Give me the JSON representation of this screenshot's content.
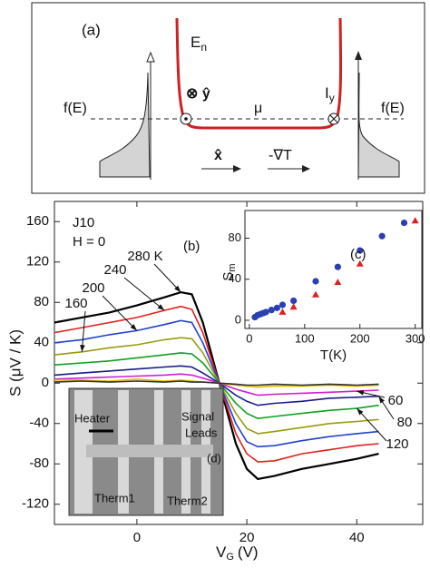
{
  "diagram": {
    "label": "(a)",
    "energy": "E",
    "energy_sub": "n",
    "fermi_left": "f(E)",
    "fermi_right": "f(E)",
    "otimes_y": "⊗ ŷ",
    "mu": "μ",
    "current": "I",
    "current_sub": "y",
    "x_hat": "x̂",
    "gradient": "-∇T"
  },
  "chart_data": [
    {
      "type": "line",
      "panel_label": "(b)",
      "annotations": [
        "J10",
        "H = 0"
      ],
      "ylabel": "S (μV / K)",
      "xlabel": "V",
      "xlabel_sub": "G",
      "xlabel_unit": "(V)",
      "xlim": [
        -15,
        52
      ],
      "ylim": [
        -140,
        180
      ],
      "xticks": [
        0,
        20,
        40
      ],
      "yticks": [
        -120,
        -80,
        -40,
        0,
        40,
        80,
        120,
        160
      ],
      "x": [
        -15,
        -10,
        -5,
        0,
        5,
        8,
        10,
        12,
        15,
        18,
        20,
        22,
        25,
        30,
        35,
        40,
        44
      ],
      "series": [
        {
          "name": "280 K",
          "color": "#000000",
          "values": [
            60,
            65,
            70,
            77,
            85,
            90,
            88,
            60,
            0,
            -60,
            -85,
            -95,
            -92,
            -85,
            -80,
            -75,
            -70
          ]
        },
        {
          "name": "240",
          "color": "#e0201a",
          "values": [
            50,
            55,
            60,
            65,
            72,
            76,
            73,
            50,
            0,
            -50,
            -70,
            -78,
            -77,
            -70,
            -66,
            -62,
            -60
          ]
        },
        {
          "name": "200",
          "color": "#2040d0",
          "values": [
            40,
            43,
            48,
            52,
            58,
            62,
            60,
            40,
            0,
            -40,
            -58,
            -63,
            -62,
            -57,
            -53,
            -50,
            -48
          ]
        },
        {
          "name": "160",
          "color": "#9a9a10",
          "values": [
            28,
            31,
            35,
            38,
            43,
            45,
            44,
            30,
            0,
            -30,
            -45,
            -50,
            -48,
            -44,
            -40,
            -38,
            -36
          ]
        },
        {
          "name": "120",
          "color": "#10a020",
          "values": [
            18,
            20,
            22,
            25,
            28,
            30,
            29,
            20,
            0,
            -20,
            -30,
            -35,
            -33,
            -30,
            -27,
            -25,
            -22
          ]
        },
        {
          "name": "80",
          "color": "#1a1a8a",
          "values": [
            8,
            10,
            12,
            14,
            16,
            17,
            16,
            10,
            0,
            -12,
            -18,
            -22,
            -20,
            -18,
            -15,
            -14,
            -13
          ]
        },
        {
          "name": "60",
          "color": "#d020d0",
          "values": [
            4,
            5,
            6,
            7,
            8,
            9,
            8,
            5,
            0,
            -6,
            -9,
            -12,
            -11,
            -10,
            -9,
            -8,
            -7
          ]
        },
        {
          "color": "#e8c000",
          "values": [
            3,
            3,
            2,
            4,
            2,
            3,
            2,
            1,
            0,
            -2,
            -3,
            -4,
            -3,
            -3,
            -2,
            -3,
            -2
          ]
        },
        {
          "color": "#303030",
          "values": [
            1,
            2,
            1,
            2,
            1,
            2,
            1,
            1,
            0,
            -1,
            -2,
            -2,
            -1,
            -2,
            -1,
            -2,
            -1
          ]
        }
      ],
      "inset_image": {
        "label": "(d)",
        "heater": "Heater",
        "signal": "Signal",
        "leads": "Leads",
        "therm1": "Therm1",
        "therm2": "Therm2"
      }
    },
    {
      "type": "scatter",
      "panel_label": "(c)",
      "ylabel": "S",
      "ylabel_sub": "m",
      "xlabel": "T(K)",
      "xlim": [
        -8,
        312
      ],
      "ylim": [
        -8,
        107
      ],
      "xticks": [
        0,
        100,
        200,
        300
      ],
      "yticks": [
        0,
        40,
        80
      ],
      "series": [
        {
          "color": "#2a40b0",
          "marker": "circle",
          "x": [
            10,
            15,
            20,
            25,
            30,
            40,
            50,
            60,
            80,
            120,
            160,
            200,
            240,
            280
          ],
          "values": [
            3,
            5,
            6,
            7,
            8,
            10,
            12,
            15,
            19,
            38,
            52,
            68,
            82,
            95
          ]
        },
        {
          "color": "#e02020",
          "marker": "triangle",
          "x": [
            60,
            80,
            120,
            160,
            200,
            300
          ],
          "values": [
            8,
            13,
            25,
            37,
            55,
            97
          ]
        }
      ]
    }
  ]
}
